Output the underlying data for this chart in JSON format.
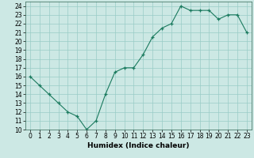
{
  "x": [
    0,
    1,
    2,
    3,
    4,
    5,
    6,
    7,
    8,
    9,
    10,
    11,
    12,
    13,
    14,
    15,
    16,
    17,
    18,
    19,
    20,
    21,
    22,
    23
  ],
  "y": [
    16,
    15,
    14,
    13,
    12,
    11.5,
    10,
    11,
    14,
    16.5,
    17,
    17,
    18.5,
    20.5,
    21.5,
    22,
    24,
    23.5,
    23.5,
    23.5,
    22.5,
    23,
    23,
    21
  ],
  "xlabel": "Humidex (Indice chaleur)",
  "xlim": [
    -0.5,
    23.5
  ],
  "ylim": [
    10,
    24.5
  ],
  "yticks": [
    10,
    11,
    12,
    13,
    14,
    15,
    16,
    17,
    18,
    19,
    20,
    21,
    22,
    23,
    24
  ],
  "xticks": [
    0,
    1,
    2,
    3,
    4,
    5,
    6,
    7,
    8,
    9,
    10,
    11,
    12,
    13,
    14,
    15,
    16,
    17,
    18,
    19,
    20,
    21,
    22,
    23
  ],
  "line_color": "#1a7a5e",
  "marker_color": "#1a7a5e",
  "bg_color": "#cce8e4",
  "grid_color": "#99ccc6",
  "label_fontsize": 6.5,
  "tick_fontsize": 5.5
}
